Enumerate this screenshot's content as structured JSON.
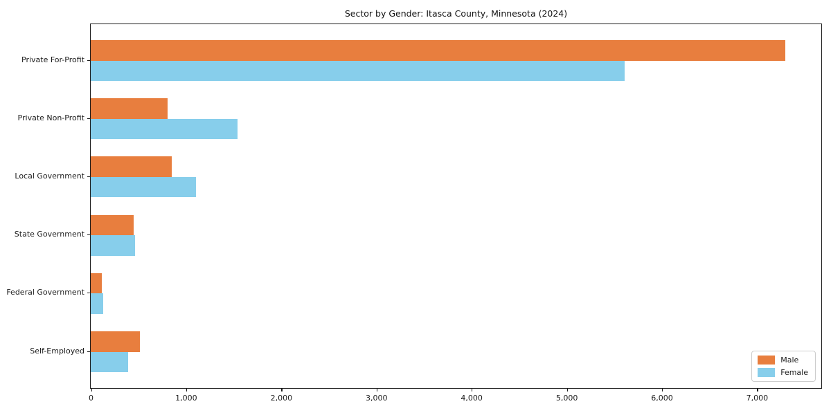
{
  "chart_data": {
    "type": "bar",
    "orientation": "horizontal",
    "title": "Sector by Gender: Itasca County, Minnesota (2024)",
    "categories": [
      "Private For-Profit",
      "Private Non-Profit",
      "Local Government",
      "State Government",
      "Federal Government",
      "Self-Employed"
    ],
    "series": [
      {
        "name": "Male",
        "color": "#e87e3e",
        "values": [
          7300,
          810,
          850,
          450,
          115,
          520
        ]
      },
      {
        "name": "Female",
        "color": "#87ceeb",
        "values": [
          5610,
          1540,
          1105,
          465,
          130,
          390
        ]
      }
    ],
    "xlabel": "",
    "ylabel": "",
    "xlim": [
      0,
      7670
    ],
    "x_ticks": [
      0,
      1000,
      2000,
      3000,
      4000,
      5000,
      6000,
      7000
    ],
    "x_tick_labels": [
      "0",
      "1,000",
      "2,000",
      "3,000",
      "4,000",
      "5,000",
      "6,000",
      "7,000"
    ],
    "grid": false,
    "legend_position": "lower right"
  },
  "legend": {
    "items": [
      {
        "label": "Male",
        "color": "#e87e3e"
      },
      {
        "label": "Female",
        "color": "#87ceeb"
      }
    ]
  }
}
